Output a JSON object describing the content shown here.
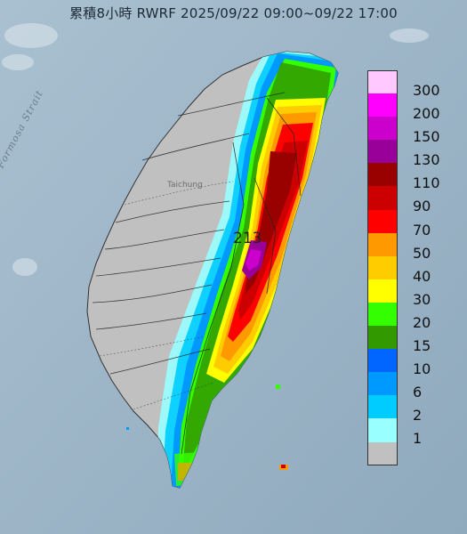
{
  "title": "累積8小時 RWRF 2025/09/22 09:00~09/22 17:00",
  "strait_label": "Formosa Strait",
  "city_label": "Taichung",
  "max_value": "213",
  "legend": [
    {
      "label": "300",
      "color": "#ffc8ff"
    },
    {
      "label": "200",
      "color": "#ff00ff"
    },
    {
      "label": "150",
      "color": "#cc00cc"
    },
    {
      "label": "130",
      "color": "#990099"
    },
    {
      "label": "110",
      "color": "#990000"
    },
    {
      "label": "90",
      "color": "#cc0000"
    },
    {
      "label": "70",
      "color": "#ff0000"
    },
    {
      "label": "50",
      "color": "#ff9900"
    },
    {
      "label": "40",
      "color": "#ffcc00"
    },
    {
      "label": "30",
      "color": "#ffff00"
    },
    {
      "label": "20",
      "color": "#33ff00"
    },
    {
      "label": "15",
      "color": "#339900"
    },
    {
      "label": "10",
      "color": "#0066ff"
    },
    {
      "label": "6",
      "color": "#0099ff"
    },
    {
      "label": "2",
      "color": "#00ccff"
    },
    {
      "label": "1",
      "color": "#99ffff"
    },
    {
      "label": "",
      "color": "#c0c0c0"
    }
  ],
  "colors": {
    "sea": "#9fb7c8",
    "land_no_rain": "#c0c0c0"
  }
}
